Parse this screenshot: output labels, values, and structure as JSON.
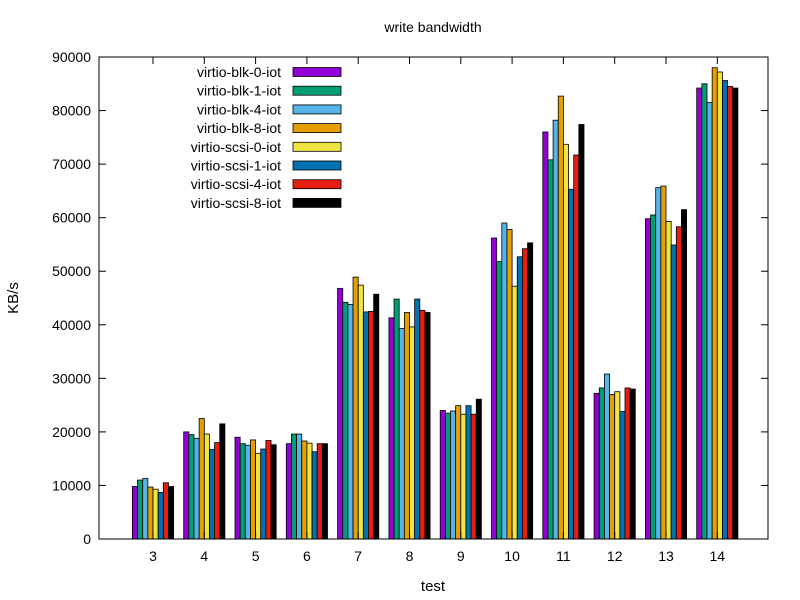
{
  "chart_data": {
    "type": "bar",
    "title": "write bandwidth",
    "xlabel": "test",
    "ylabel": "KB/s",
    "ylim": [
      0,
      90000
    ],
    "yticks": [
      0,
      10000,
      20000,
      30000,
      40000,
      50000,
      60000,
      70000,
      80000,
      90000
    ],
    "grid": false,
    "legend_position": "top-left",
    "categories": [
      "3",
      "4",
      "5",
      "6",
      "7",
      "8",
      "9",
      "10",
      "11",
      "12",
      "13",
      "14"
    ],
    "series": [
      {
        "name": "virtio-blk-0-iot",
        "color": "#9400d3",
        "values": [
          9800,
          20000,
          19000,
          17800,
          46800,
          41300,
          24000,
          56200,
          76000,
          27200,
          59800,
          84200
        ]
      },
      {
        "name": "virtio-blk-1-iot",
        "color": "#009e73",
        "values": [
          11000,
          19500,
          17800,
          19600,
          44200,
          44800,
          23500,
          51800,
          70800,
          28200,
          60500,
          85000
        ]
      },
      {
        "name": "virtio-blk-4-iot",
        "color": "#56b4e9",
        "values": [
          11300,
          18800,
          17500,
          19600,
          43800,
          39300,
          23900,
          59000,
          78200,
          30800,
          65600,
          81500
        ]
      },
      {
        "name": "virtio-blk-8-iot",
        "color": "#e69f00",
        "values": [
          9700,
          22500,
          18500,
          18300,
          48900,
          42300,
          24900,
          57800,
          82700,
          27000,
          65900,
          88000
        ]
      },
      {
        "name": "virtio-scsi-0-iot",
        "color": "#f0e442",
        "values": [
          9300,
          19600,
          16000,
          17900,
          47400,
          39600,
          23300,
          47200,
          73700,
          27500,
          59300,
          87200
        ]
      },
      {
        "name": "virtio-scsi-1-iot",
        "color": "#0072b2",
        "values": [
          8700,
          16700,
          16800,
          16300,
          42400,
          44800,
          24900,
          52700,
          65300,
          23800,
          54900,
          85600
        ]
      },
      {
        "name": "virtio-scsi-4-iot",
        "color": "#e51e10",
        "values": [
          10500,
          18000,
          18400,
          17800,
          42500,
          42700,
          23300,
          54200,
          71700,
          28200,
          58300,
          84500
        ]
      },
      {
        "name": "virtio-scsi-8-iot",
        "color": "#000000",
        "values": [
          9800,
          21500,
          17600,
          17800,
          45700,
          42300,
          26100,
          55300,
          77400,
          28000,
          61500,
          84200
        ]
      }
    ]
  }
}
